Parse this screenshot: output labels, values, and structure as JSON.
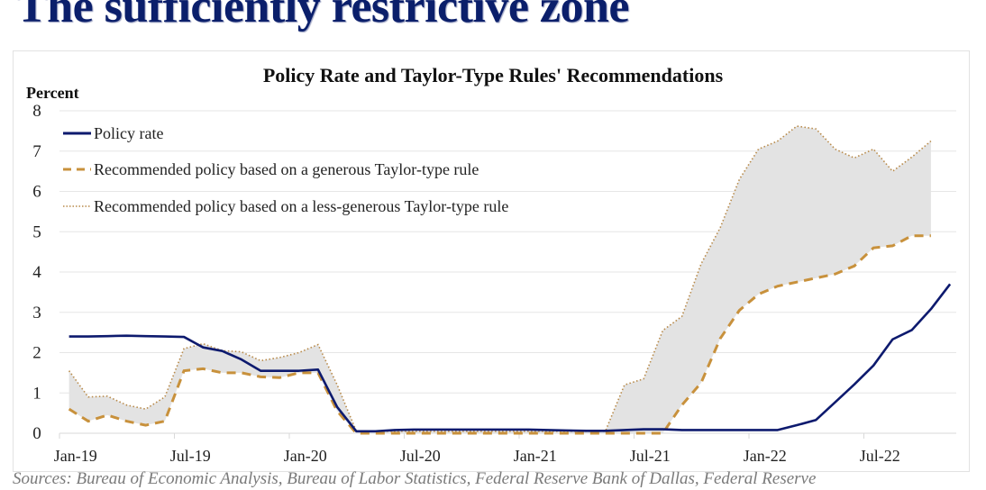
{
  "slide": {
    "title": "The sufficiently restrictive zone",
    "source": "Sources: Bureau of Economic Analysis, Bureau of Labor Statistics, Federal Reserve Bank of Dallas, Federal Reserve"
  },
  "chart_data": {
    "type": "line",
    "title": "Policy Rate and Taylor-Type Rules' Recommendations",
    "ylabel": "Percent",
    "xlabel": "",
    "ylim": [
      0,
      8
    ],
    "yticks": [
      "0",
      "1",
      "2",
      "3",
      "4",
      "5",
      "6",
      "7",
      "8"
    ],
    "xticks": [
      "Jan-19",
      "Jul-19",
      "Jan-20",
      "Jul-20",
      "Jan-21",
      "Jul-21",
      "Jan-22",
      "Jul-22"
    ],
    "x_start": "Jan-19",
    "frequency": "monthly",
    "grid": true,
    "legend_position": "top-left",
    "shaded_band": "between generous and less-generous rule recommendations",
    "colors": {
      "policy_rate": "#0d1a6e",
      "generous": "#c8913c",
      "less_generous": "#b88a4a",
      "band": "#e3e3e3",
      "grid": "#e6e6e6"
    },
    "series": [
      {
        "name": "Policy rate",
        "style": "solid",
        "values": [
          2.4,
          2.4,
          2.41,
          2.42,
          2.41,
          2.4,
          2.39,
          2.13,
          2.04,
          1.83,
          1.55,
          1.55,
          1.55,
          1.58,
          0.65,
          0.05,
          0.05,
          0.08,
          0.09,
          0.09,
          0.09,
          0.09,
          0.09,
          0.09,
          0.09,
          0.08,
          0.07,
          0.06,
          0.06,
          0.08,
          0.1,
          0.1,
          0.08,
          0.08,
          0.08,
          0.08,
          0.08,
          0.08,
          0.2,
          0.33,
          0.77,
          1.21,
          1.68,
          2.33,
          2.56,
          3.08,
          3.7
        ]
      },
      {
        "name": "Recommended policy based on a generous Taylor-type rule",
        "style": "dashed",
        "values": [
          0.6,
          0.3,
          0.45,
          0.3,
          0.2,
          0.3,
          1.55,
          1.6,
          1.5,
          1.5,
          1.4,
          1.38,
          1.5,
          1.5,
          0.55,
          0.0,
          0.0,
          0.0,
          0.0,
          0.0,
          0.0,
          0.0,
          0.0,
          0.0,
          0.0,
          0.0,
          0.0,
          0.0,
          0.0,
          0.0,
          0.0,
          0.0,
          0.7,
          1.25,
          2.35,
          3.05,
          3.45,
          3.65,
          3.75,
          3.85,
          3.95,
          4.15,
          4.6,
          4.65,
          4.9,
          4.9
        ]
      },
      {
        "name": "Recommended policy based on a less-generous Taylor-type rule",
        "style": "dotted",
        "values": [
          1.55,
          0.9,
          0.92,
          0.7,
          0.6,
          0.9,
          2.1,
          2.22,
          2.05,
          2.02,
          1.8,
          1.88,
          2.0,
          2.2,
          1.2,
          0.05,
          0.05,
          0.05,
          0.05,
          0.05,
          0.05,
          0.05,
          0.05,
          0.05,
          0.05,
          0.05,
          0.05,
          0.05,
          0.05,
          1.2,
          1.35,
          2.55,
          2.9,
          4.2,
          5.1,
          6.3,
          7.05,
          7.25,
          7.62,
          7.55,
          7.05,
          6.83,
          7.05,
          6.5,
          6.85,
          7.25
        ]
      }
    ]
  }
}
